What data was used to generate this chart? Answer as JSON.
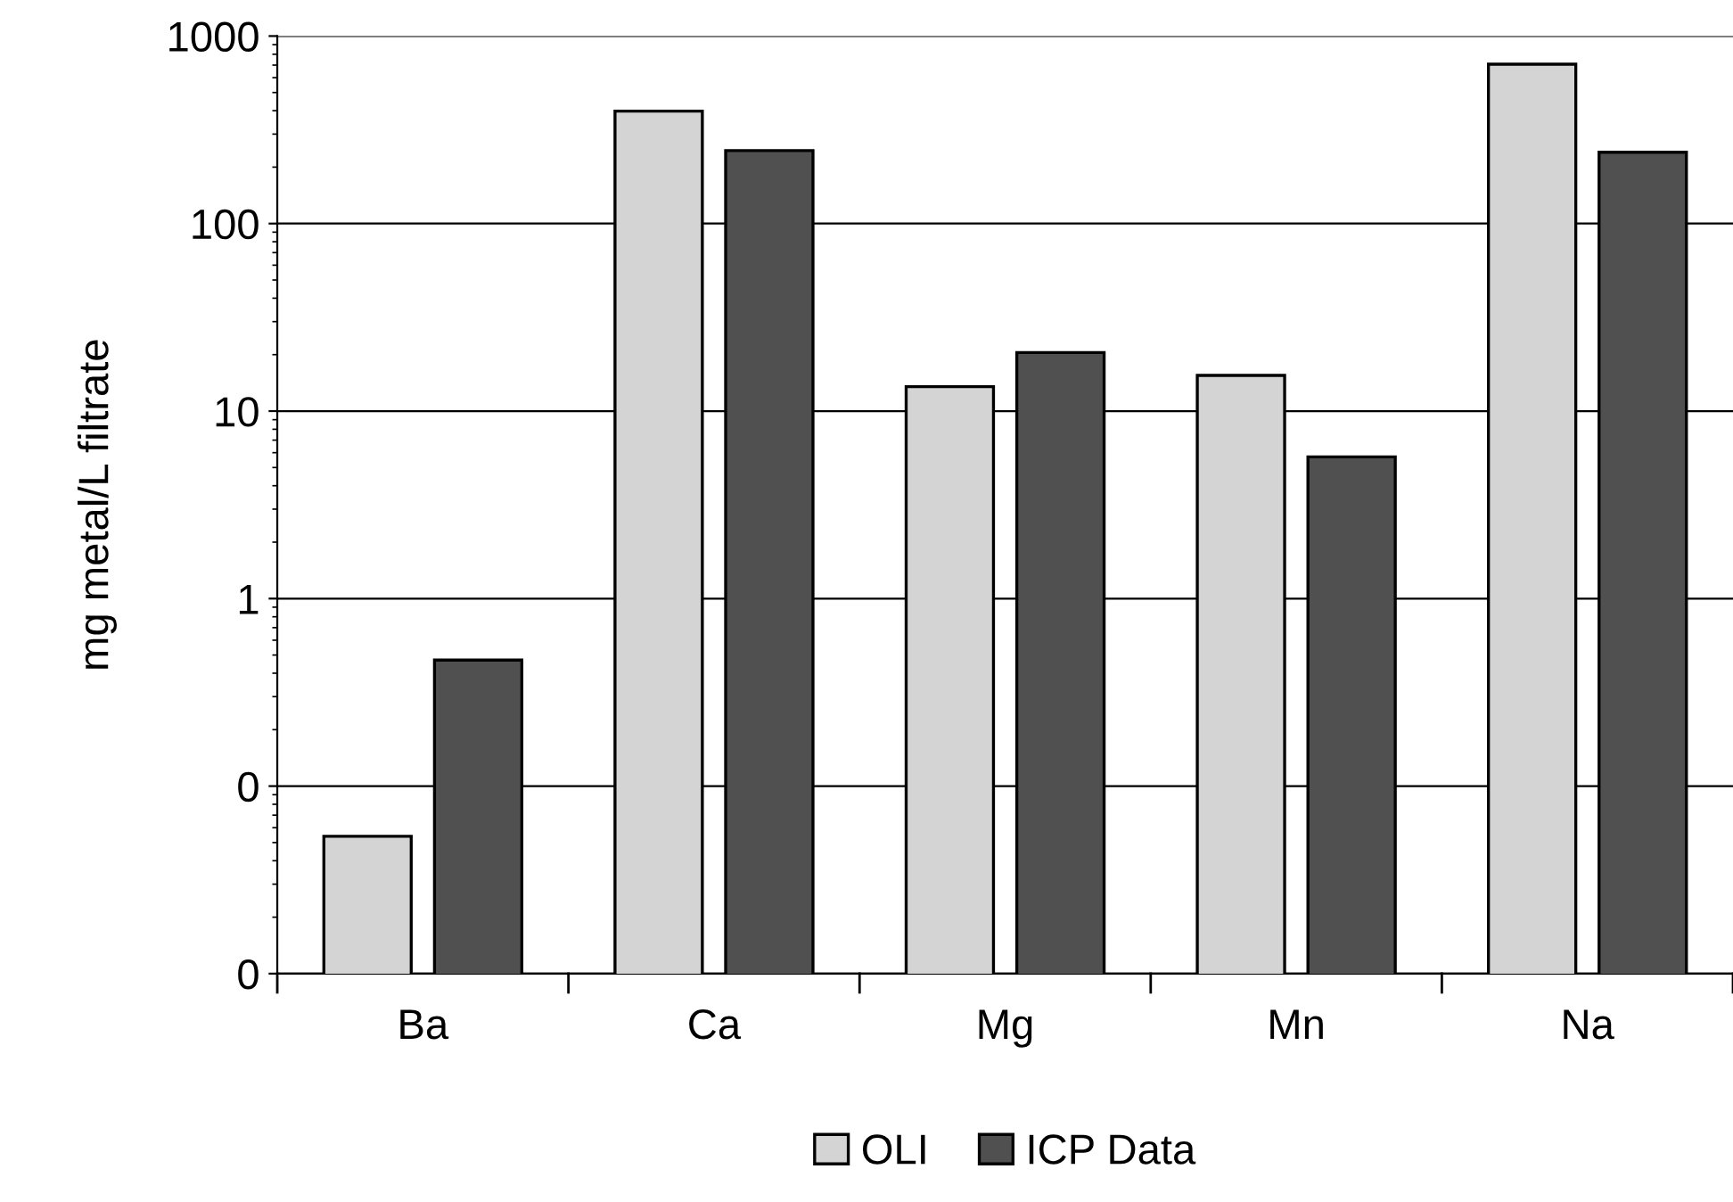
{
  "chart_data": {
    "type": "bar",
    "ylabel": "mg metal/L filtrate",
    "categories": [
      "Ba",
      "Ca",
      "Mg",
      "Mn",
      "Na"
    ],
    "series": [
      {
        "name": "OLI",
        "color": "#d4d4d4",
        "values": [
          0.054,
          398,
          13.5,
          15.5,
          708
        ]
      },
      {
        "name": "ICP Data",
        "color": "#505050",
        "values": [
          0.47,
          245,
          20.5,
          5.7,
          240
        ]
      }
    ],
    "log": "y",
    "ylim": [
      0.01,
      1000
    ],
    "yticks": [
      {
        "value": 0.01,
        "label": "0"
      },
      {
        "value": 0.1,
        "label": "0"
      },
      1,
      10,
      100,
      1000
    ],
    "grid": "y",
    "legend": "bottom"
  }
}
